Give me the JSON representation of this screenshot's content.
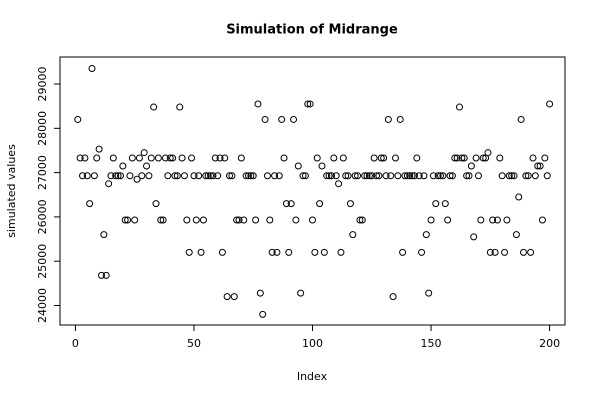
{
  "chart_data": {
    "type": "scatter",
    "title": "Simulation of Midrange",
    "x_label": "Index",
    "y_label": "simulated values",
    "x": [
      1,
      2,
      3,
      4,
      5,
      6,
      7,
      8,
      9,
      10,
      11,
      12,
      13,
      14,
      15,
      16,
      17,
      18,
      19,
      20,
      21,
      22,
      23,
      24,
      25,
      26,
      27,
      28,
      29,
      30,
      31,
      32,
      33,
      34,
      35,
      36,
      37,
      38,
      39,
      40,
      41,
      42,
      43,
      44,
      45,
      46,
      47,
      48,
      49,
      50,
      51,
      52,
      53,
      54,
      55,
      56,
      57,
      58,
      59,
      60,
      61,
      62,
      63,
      64,
      65,
      66,
      67,
      68,
      69,
      70,
      71,
      72,
      73,
      74,
      75,
      76,
      77,
      78,
      79,
      80,
      81,
      82,
      83,
      84,
      85,
      86,
      87,
      88,
      89,
      90,
      91,
      92,
      93,
      94,
      95,
      96,
      97,
      98,
      99,
      100,
      101,
      102,
      103,
      104,
      105,
      106,
      107,
      108,
      109,
      110,
      111,
      112,
      113,
      114,
      115,
      116,
      117,
      118,
      119,
      120,
      121,
      122,
      123,
      124,
      125,
      126,
      127,
      128,
      129,
      130,
      131,
      132,
      133,
      134,
      135,
      136,
      137,
      138,
      139,
      140,
      141,
      142,
      143,
      144,
      145,
      146,
      147,
      148,
      149,
      150,
      151,
      152,
      153,
      154,
      155,
      156,
      157,
      158,
      159,
      160,
      161,
      162,
      163,
      164,
      165,
      166,
      167,
      168,
      169,
      170,
      171,
      172,
      173,
      174,
      175,
      176,
      177,
      178,
      179,
      180,
      181,
      182,
      183,
      184,
      185,
      186,
      187,
      188,
      189,
      190,
      191,
      192,
      193,
      194,
      195,
      196,
      197,
      198,
      199,
      200
    ],
    "values": [
      28200,
      27330,
      26930,
      27330,
      26930,
      26300,
      29350,
      26930,
      27330,
      27530,
      24680,
      25600,
      24680,
      26750,
      26930,
      27330,
      26930,
      26930,
      26930,
      27150,
      25930,
      25930,
      26930,
      27330,
      25930,
      26850,
      27330,
      26930,
      27450,
      27150,
      26930,
      27330,
      28480,
      26300,
      27330,
      25930,
      25930,
      27330,
      26930,
      27330,
      27330,
      26930,
      26930,
      28480,
      27330,
      26930,
      25930,
      25200,
      27330,
      26930,
      25930,
      26930,
      25200,
      25930,
      26930,
      26930,
      26930,
      26930,
      27330,
      26930,
      27330,
      25200,
      27330,
      24200,
      26930,
      26930,
      24200,
      25930,
      25930,
      27330,
      25930,
      26930,
      26930,
      26930,
      26930,
      25930,
      28550,
      24280,
      23800,
      28200,
      26930,
      25930,
      25200,
      26930,
      25200,
      26930,
      28200,
      27330,
      26300,
      25200,
      26300,
      28200,
      25930,
      27150,
      24280,
      26930,
      26930,
      28550,
      28550,
      25930,
      25200,
      27330,
      26300,
      27150,
      25200,
      26930,
      26930,
      26930,
      27330,
      26930,
      26750,
      25200,
      27330,
      26930,
      26930,
      26300,
      25600,
      26930,
      26930,
      25930,
      25930,
      26930,
      26930,
      26930,
      26930,
      27330,
      26930,
      26930,
      27330,
      27330,
      26930,
      28200,
      26930,
      24200,
      27330,
      26930,
      28200,
      25200,
      26930,
      26930,
      26930,
      26930,
      26930,
      27330,
      26930,
      25200,
      26930,
      25600,
      24280,
      25930,
      26930,
      26300,
      26930,
      26930,
      26930,
      26300,
      25930,
      26930,
      26930,
      27330,
      27330,
      28480,
      27330,
      27330,
      26930,
      26930,
      27150,
      25550,
      27330,
      26930,
      25930,
      27330,
      27330,
      27450,
      25200,
      25930,
      25200,
      25930,
      27330,
      26930,
      25200,
      25930,
      26930,
      26930,
      26930,
      25600,
      26450,
      28200,
      25200,
      26930,
      26930,
      25200,
      27330,
      26930,
      27150,
      27150,
      25930,
      27330,
      26930,
      28550
    ],
    "color": "#000000",
    "xlim": [
      -6.5,
      206.5
    ],
    "xticks": [
      0,
      50,
      100,
      150,
      200
    ],
    "ylim": [
      23560,
      29610
    ],
    "yticks": [
      24000,
      25000,
      26000,
      27000,
      28000,
      29000
    ]
  }
}
